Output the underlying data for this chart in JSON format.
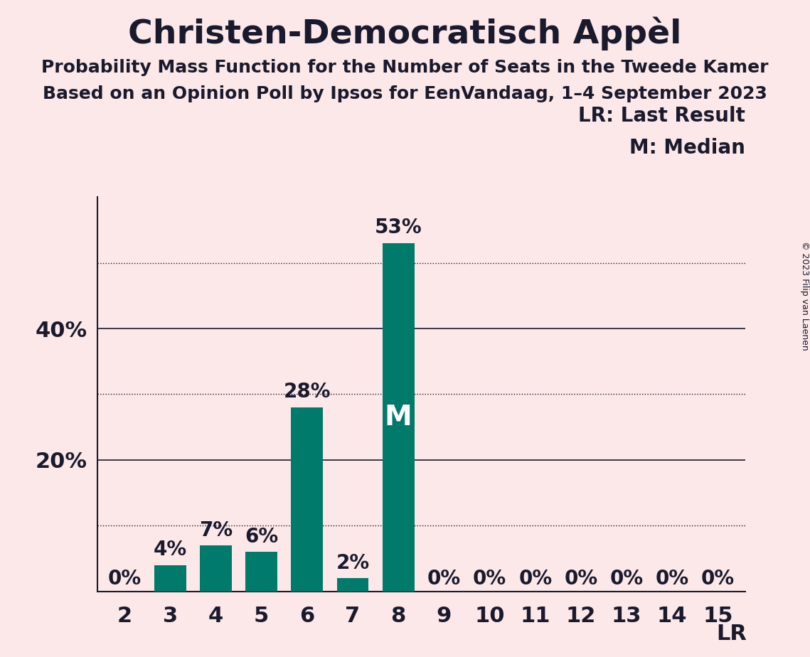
{
  "title": "Christen-Democratisch Appèl",
  "subtitle1": "Probability Mass Function for the Number of Seats in the Tweede Kamer",
  "subtitle2": "Based on an Opinion Poll by Ipsos for EenVandaag, 1–4 September 2023",
  "copyright": "© 2023 Filip van Laenen",
  "categories": [
    2,
    3,
    4,
    5,
    6,
    7,
    8,
    9,
    10,
    11,
    12,
    13,
    14,
    15
  ],
  "values": [
    0,
    4,
    7,
    6,
    28,
    2,
    53,
    0,
    0,
    0,
    0,
    0,
    0,
    0
  ],
  "bar_color": "#007a6a",
  "background_color": "#fce8e8",
  "text_color": "#1a1a2e",
  "median_seat": 8,
  "last_result_seat": 15,
  "ylim_max": 60,
  "solid_yticks": [
    0,
    20,
    40
  ],
  "dotted_yticks": [
    10,
    30,
    50
  ],
  "title_fontsize": 34,
  "subtitle_fontsize": 18,
  "axis_tick_fontsize": 22,
  "bar_label_fontsize": 20,
  "legend_fontsize": 20,
  "median_label_fontsize": 28,
  "lr_label_fontsize": 22,
  "copyright_fontsize": 9
}
